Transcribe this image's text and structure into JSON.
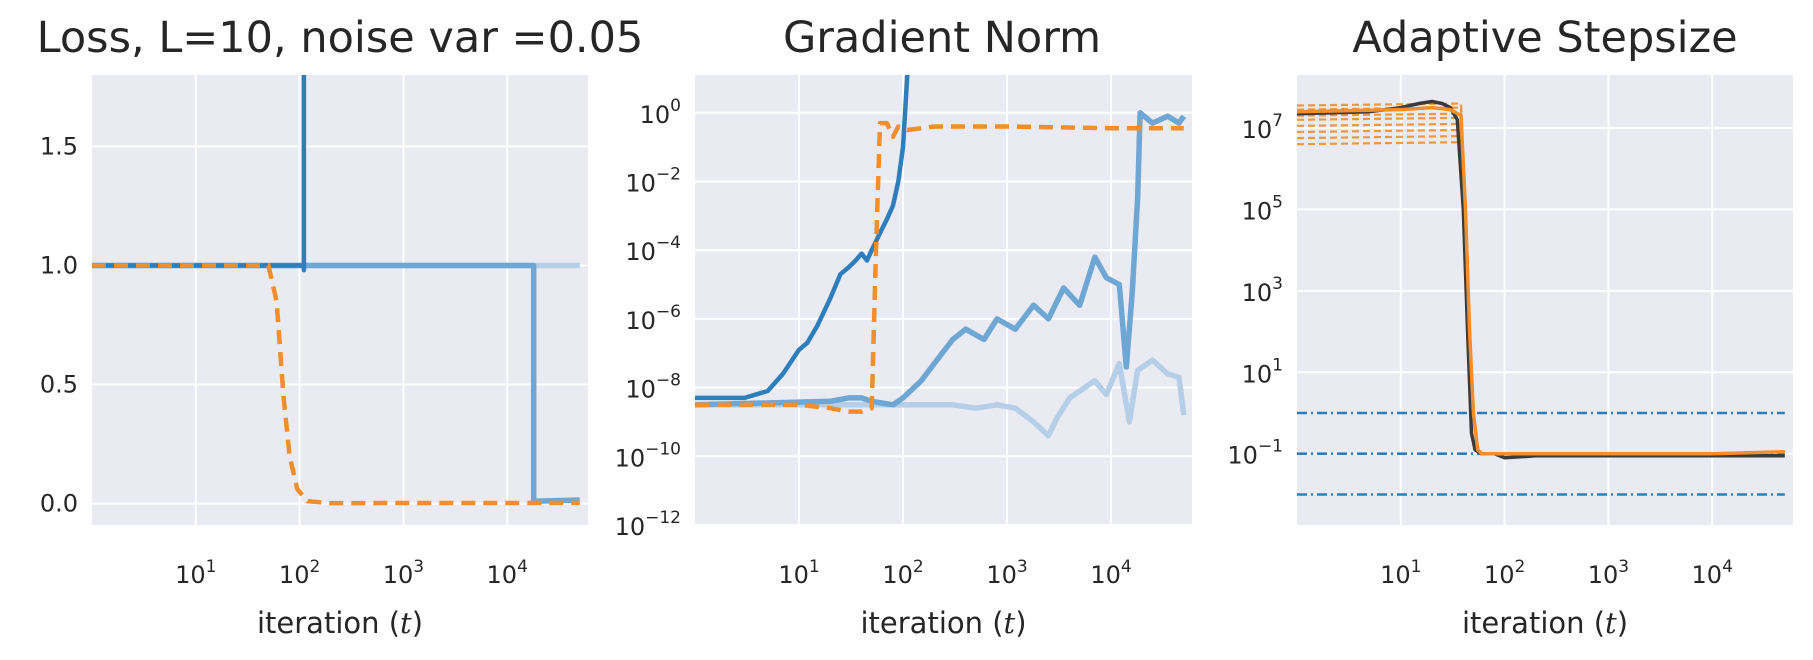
{
  "colors": {
    "panel_bg": "#eaeaf2",
    "grid": "#ffffff",
    "blue_dark": "#2f7ebc",
    "blue_mid": "#6fa7d4",
    "blue_light": "#b4cfe7",
    "orange": "#f28e2b",
    "dark": "#3b3b3b"
  },
  "chart_data": [
    {
      "type": "line",
      "title": "Loss, L=10, noise var =0.05",
      "xlabel": "iteration ($t$)",
      "xlabel_parts": {
        "pre": "iteration (",
        "var": "t",
        "post": ")"
      },
      "xscale": "log",
      "yscale": "linear",
      "xlim": [
        1,
        60000
      ],
      "ylim": [
        -0.09,
        1.8
      ],
      "grid": true,
      "xticks": [
        {
          "value": 10,
          "base": "10",
          "exp": "1"
        },
        {
          "value": 100,
          "base": "10",
          "exp": "2"
        },
        {
          "value": 1000,
          "base": "10",
          "exp": "3"
        },
        {
          "value": 10000,
          "base": "10",
          "exp": "4"
        }
      ],
      "yticks": [
        {
          "value": 0.0,
          "label": "0.0"
        },
        {
          "value": 0.5,
          "label": "0.5"
        },
        {
          "value": 1.0,
          "label": "1.0"
        },
        {
          "value": 1.5,
          "label": "1.5"
        }
      ],
      "series": [
        {
          "style": "light",
          "points": [
            [
              1,
              1.0
            ],
            [
              50000,
              1.0
            ]
          ]
        },
        {
          "style": "mid",
          "points": [
            [
              1,
              1.0
            ],
            [
              18000,
              1.0
            ],
            [
              18000,
              0.01
            ],
            [
              50000,
              0.015
            ]
          ]
        },
        {
          "style": "dark",
          "points": [
            [
              1,
              1.0
            ],
            [
              110,
              1.0
            ],
            [
              110,
              0.98
            ],
            [
              110,
              1.8
            ]
          ]
        },
        {
          "style": "orange_dashed",
          "points": [
            [
              1,
              1.0
            ],
            [
              50,
              1.0
            ],
            [
              60,
              0.85
            ],
            [
              70,
              0.45
            ],
            [
              80,
              0.2
            ],
            [
              95,
              0.06
            ],
            [
              120,
              0.01
            ],
            [
              200,
              0.002
            ],
            [
              50000,
              0.003
            ]
          ]
        }
      ]
    },
    {
      "type": "line",
      "title": "Gradient Norm",
      "xlabel": "iteration ($t$)",
      "xlabel_parts": {
        "pre": "iteration (",
        "var": "t",
        "post": ")"
      },
      "xscale": "log",
      "yscale": "log",
      "xlim": [
        1,
        60000
      ],
      "ylim_exp": [
        -12,
        1.1
      ],
      "grid": true,
      "xticks": [
        {
          "value": 10,
          "base": "10",
          "exp": "1"
        },
        {
          "value": 100,
          "base": "10",
          "exp": "2"
        },
        {
          "value": 1000,
          "base": "10",
          "exp": "3"
        },
        {
          "value": 10000,
          "base": "10",
          "exp": "4"
        }
      ],
      "yticks": [
        {
          "exp_value": -12,
          "base": "10",
          "exp": "−12"
        },
        {
          "exp_value": -10,
          "base": "10",
          "exp": "−10"
        },
        {
          "exp_value": -8,
          "base": "10",
          "exp": "−8"
        },
        {
          "exp_value": -6,
          "base": "10",
          "exp": "−6"
        },
        {
          "exp_value": -4,
          "base": "10",
          "exp": "−4"
        },
        {
          "exp_value": -2,
          "base": "10",
          "exp": "−2"
        },
        {
          "exp_value": 0,
          "base": "10",
          "exp": "0"
        }
      ],
      "series": [
        {
          "style": "light",
          "points_log10y": [
            [
              1,
              -8.5
            ],
            [
              100,
              -8.5
            ],
            [
              300,
              -8.5
            ],
            [
              500,
              -8.6
            ],
            [
              800,
              -8.5
            ],
            [
              1200,
              -8.6
            ],
            [
              1800,
              -9.0
            ],
            [
              2500,
              -9.4
            ],
            [
              3000,
              -8.9
            ],
            [
              4000,
              -8.3
            ],
            [
              5000,
              -8.1
            ],
            [
              7000,
              -7.8
            ],
            [
              9000,
              -8.2
            ],
            [
              12000,
              -7.3
            ],
            [
              15000,
              -9.0
            ],
            [
              18000,
              -7.5
            ],
            [
              25000,
              -7.2
            ],
            [
              35000,
              -7.6
            ],
            [
              45000,
              -7.7
            ],
            [
              50000,
              -8.8
            ]
          ]
        },
        {
          "style": "mid",
          "points_log10y": [
            [
              1,
              -8.5
            ],
            [
              20,
              -8.4
            ],
            [
              30,
              -8.3
            ],
            [
              40,
              -8.3
            ],
            [
              50,
              -8.4
            ],
            [
              80,
              -8.5
            ],
            [
              100,
              -8.3
            ],
            [
              150,
              -7.8
            ],
            [
              200,
              -7.3
            ],
            [
              300,
              -6.6
            ],
            [
              400,
              -6.3
            ],
            [
              600,
              -6.6
            ],
            [
              800,
              -6.0
            ],
            [
              1200,
              -6.3
            ],
            [
              1800,
              -5.6
            ],
            [
              2500,
              -6.0
            ],
            [
              3500,
              -5.1
            ],
            [
              5000,
              -5.6
            ],
            [
              7000,
              -4.2
            ],
            [
              9000,
              -4.8
            ],
            [
              12000,
              -5.0
            ],
            [
              14000,
              -7.4
            ],
            [
              16000,
              -5.2
            ],
            [
              18000,
              -2.5
            ],
            [
              19000,
              0.0
            ],
            [
              25000,
              -0.3
            ],
            [
              35000,
              -0.1
            ],
            [
              45000,
              -0.3
            ],
            [
              50000,
              -0.1
            ]
          ]
        },
        {
          "style": "dark",
          "points_log10y": [
            [
              1,
              -8.3
            ],
            [
              3,
              -8.3
            ],
            [
              5,
              -8.1
            ],
            [
              7,
              -7.6
            ],
            [
              10,
              -6.9
            ],
            [
              12,
              -6.7
            ],
            [
              15,
              -6.2
            ],
            [
              20,
              -5.4
            ],
            [
              25,
              -4.7
            ],
            [
              30,
              -4.5
            ],
            [
              35,
              -4.3
            ],
            [
              40,
              -4.1
            ],
            [
              45,
              -4.3
            ],
            [
              50,
              -4.0
            ],
            [
              60,
              -3.5
            ],
            [
              70,
              -3.1
            ],
            [
              80,
              -2.7
            ],
            [
              90,
              -2.0
            ],
            [
              100,
              -1.0
            ],
            [
              110,
              1.1
            ]
          ]
        },
        {
          "style": "orange_dashed",
          "points_log10y": [
            [
              1,
              -8.5
            ],
            [
              10,
              -8.5
            ],
            [
              20,
              -8.6
            ],
            [
              30,
              -8.7
            ],
            [
              40,
              -8.7
            ],
            [
              50,
              -8.6
            ],
            [
              55,
              -4.0
            ],
            [
              60,
              -0.3
            ],
            [
              70,
              -0.3
            ],
            [
              80,
              -0.7
            ],
            [
              90,
              -0.4
            ],
            [
              110,
              -0.5
            ],
            [
              200,
              -0.4
            ],
            [
              1000,
              -0.4
            ],
            [
              10000,
              -0.45
            ],
            [
              50000,
              -0.45
            ]
          ]
        }
      ]
    },
    {
      "type": "line",
      "title": "Adaptive Stepsize",
      "xlabel": "iteration ($t$)",
      "xlabel_parts": {
        "pre": "iteration (",
        "var": "t",
        "post": ")"
      },
      "xscale": "log",
      "yscale": "log",
      "xlim": [
        1,
        60000
      ],
      "ylim_exp": [
        -2.75,
        8.3
      ],
      "grid": true,
      "xticks": [
        {
          "value": 10,
          "base": "10",
          "exp": "1"
        },
        {
          "value": 100,
          "base": "10",
          "exp": "2"
        },
        {
          "value": 1000,
          "base": "10",
          "exp": "3"
        },
        {
          "value": 10000,
          "base": "10",
          "exp": "4"
        }
      ],
      "yticks": [
        {
          "exp_value": -1,
          "base": "10",
          "exp": "−1"
        },
        {
          "exp_value": 1,
          "base": "10",
          "exp": "1"
        },
        {
          "exp_value": 3,
          "base": "10",
          "exp": "3"
        },
        {
          "exp_value": 5,
          "base": "10",
          "exp": "5"
        },
        {
          "exp_value": 7,
          "base": "10",
          "exp": "7"
        }
      ],
      "hlines": [
        {
          "log10y": 0,
          "style": "blue_dashdot"
        },
        {
          "log10y": -1,
          "style": "blue_dashdot"
        },
        {
          "log10y": -2,
          "style": "blue_dashdot"
        }
      ],
      "orange_thin_levels_log10y": [
        7.55,
        7.45,
        7.3,
        7.2,
        7.05,
        6.9,
        6.75,
        6.6
      ],
      "series": [
        {
          "style": "dark_solid",
          "points_log10y": [
            [
              1,
              7.35
            ],
            [
              5,
              7.4
            ],
            [
              10,
              7.5
            ],
            [
              15,
              7.6
            ],
            [
              20,
              7.65
            ],
            [
              25,
              7.6
            ],
            [
              30,
              7.5
            ],
            [
              35,
              7.2
            ],
            [
              40,
              5.0
            ],
            [
              44,
              2.0
            ],
            [
              48,
              -0.5
            ],
            [
              52,
              -0.9
            ],
            [
              60,
              -1.0
            ],
            [
              80,
              -1.0
            ],
            [
              100,
              -1.1
            ],
            [
              200,
              -1.05
            ],
            [
              1000,
              -1.05
            ],
            [
              10000,
              -1.05
            ],
            [
              50000,
              -1.05
            ]
          ]
        },
        {
          "style": "orange_solid",
          "points_log10y": [
            [
              1,
              7.4
            ],
            [
              10,
              7.45
            ],
            [
              20,
              7.5
            ],
            [
              30,
              7.45
            ],
            [
              38,
              7.3
            ],
            [
              42,
              5.0
            ],
            [
              46,
              2.0
            ],
            [
              50,
              0.0
            ],
            [
              55,
              -0.9
            ],
            [
              60,
              -1.0
            ],
            [
              100,
              -1.0
            ],
            [
              1000,
              -1.0
            ],
            [
              10000,
              -1.0
            ],
            [
              50000,
              -0.95
            ]
          ]
        }
      ]
    }
  ]
}
